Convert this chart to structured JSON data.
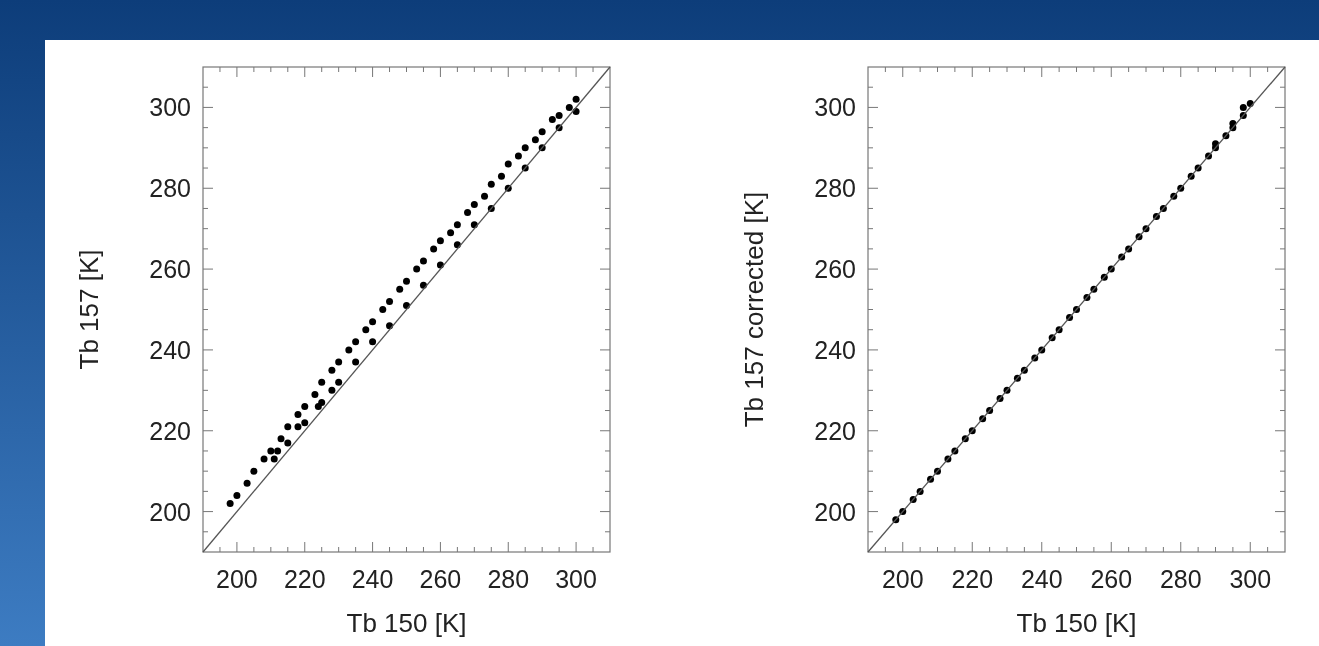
{
  "chart_data": [
    {
      "type": "scatter",
      "xlabel": "Tb 150 [K]",
      "ylabel": "Tb 157 [K]",
      "xlim": [
        190,
        310
      ],
      "ylim": [
        190,
        310
      ],
      "marker": "circle",
      "xticks": [
        {
          "value": 195,
          "label": null
        },
        200,
        {
          "value": 205,
          "label": null
        },
        {
          "value": 210,
          "label": null
        },
        {
          "value": 215,
          "label": null
        },
        220,
        {
          "value": 225,
          "label": null
        },
        {
          "value": 230,
          "label": null
        },
        {
          "value": 235,
          "label": null
        },
        240,
        {
          "value": 245,
          "label": null
        },
        {
          "value": 250,
          "label": null
        },
        {
          "value": 255,
          "label": null
        },
        260,
        {
          "value": 265,
          "label": null
        },
        {
          "value": 270,
          "label": null
        },
        {
          "value": 275,
          "label": null
        },
        280,
        {
          "value": 285,
          "label": null
        },
        {
          "value": 290,
          "label": null
        },
        {
          "value": 295,
          "label": null
        },
        300,
        {
          "value": 305,
          "label": null
        }
      ],
      "yticks": [
        {
          "value": 195,
          "label": null
        },
        200,
        {
          "value": 205,
          "label": null
        },
        {
          "value": 210,
          "label": null
        },
        {
          "value": 215,
          "label": null
        },
        220,
        {
          "value": 225,
          "label": null
        },
        {
          "value": 230,
          "label": null
        },
        {
          "value": 235,
          "label": null
        },
        240,
        {
          "value": 245,
          "label": null
        },
        {
          "value": 250,
          "label": null
        },
        {
          "value": 255,
          "label": null
        },
        260,
        {
          "value": 265,
          "label": null
        },
        {
          "value": 270,
          "label": null
        },
        {
          "value": 275,
          "label": null
        },
        280,
        {
          "value": 285,
          "label": null
        },
        {
          "value": 290,
          "label": null
        },
        {
          "value": 295,
          "label": null
        },
        300,
        {
          "value": 305,
          "label": null
        }
      ],
      "series": [
        {
          "color": "#000000",
          "x": [
            198,
            200,
            203,
            205,
            208,
            210,
            213,
            215,
            218,
            220,
            223,
            225,
            228,
            230,
            233,
            235,
            238,
            240,
            243,
            245,
            248,
            250,
            253,
            255,
            258,
            260,
            263,
            265,
            268,
            270,
            273,
            275,
            278,
            280,
            283,
            285,
            288,
            290,
            293,
            295,
            298,
            300,
            211,
            215,
            220,
            225,
            230,
            235,
            240,
            245,
            250,
            255,
            260,
            265,
            270,
            275,
            280,
            285,
            290,
            295,
            300,
            212,
            218,
            224,
            228
          ],
          "values": [
            202,
            204,
            207,
            210,
            213,
            215,
            218,
            221,
            224,
            226,
            229,
            232,
            235,
            237,
            240,
            242,
            245,
            247,
            250,
            252,
            255,
            257,
            260,
            262,
            265,
            267,
            269,
            271,
            274,
            276,
            278,
            281,
            283,
            286,
            288,
            290,
            292,
            294,
            297,
            298,
            300,
            302,
            213,
            217,
            222,
            227,
            232,
            237,
            242,
            246,
            251,
            256,
            261,
            266,
            271,
            275,
            280,
            285,
            290,
            295,
            299,
            215,
            221,
            226,
            230
          ]
        },
        {
          "type": "line",
          "marker": "none",
          "color": "#555555",
          "x": [
            190,
            310
          ],
          "values": [
            190,
            310
          ]
        }
      ]
    },
    {
      "type": "scatter",
      "xlabel": "Tb 150 [K]",
      "ylabel": "Tb 157 corrected [K]",
      "xlim": [
        190,
        310
      ],
      "ylim": [
        190,
        310
      ],
      "marker": "circle",
      "xticks": [
        {
          "value": 195,
          "label": null
        },
        200,
        {
          "value": 205,
          "label": null
        },
        {
          "value": 210,
          "label": null
        },
        {
          "value": 215,
          "label": null
        },
        220,
        {
          "value": 225,
          "label": null
        },
        {
          "value": 230,
          "label": null
        },
        {
          "value": 235,
          "label": null
        },
        240,
        {
          "value": 245,
          "label": null
        },
        {
          "value": 250,
          "label": null
        },
        {
          "value": 255,
          "label": null
        },
        260,
        {
          "value": 265,
          "label": null
        },
        {
          "value": 270,
          "label": null
        },
        {
          "value": 275,
          "label": null
        },
        280,
        {
          "value": 285,
          "label": null
        },
        {
          "value": 290,
          "label": null
        },
        {
          "value": 295,
          "label": null
        },
        300,
        {
          "value": 305,
          "label": null
        }
      ],
      "yticks": [
        {
          "value": 195,
          "label": null
        },
        200,
        {
          "value": 205,
          "label": null
        },
        {
          "value": 210,
          "label": null
        },
        {
          "value": 215,
          "label": null
        },
        220,
        {
          "value": 225,
          "label": null
        },
        {
          "value": 230,
          "label": null
        },
        {
          "value": 235,
          "label": null
        },
        240,
        {
          "value": 245,
          "label": null
        },
        {
          "value": 250,
          "label": null
        },
        {
          "value": 255,
          "label": null
        },
        260,
        {
          "value": 265,
          "label": null
        },
        {
          "value": 270,
          "label": null
        },
        {
          "value": 275,
          "label": null
        },
        280,
        {
          "value": 285,
          "label": null
        },
        {
          "value": 290,
          "label": null
        },
        {
          "value": 295,
          "label": null
        },
        300,
        {
          "value": 305,
          "label": null
        }
      ],
      "series": [
        {
          "color": "#000000",
          "x": [
            198,
            200,
            203,
            205,
            208,
            210,
            213,
            215,
            218,
            220,
            223,
            225,
            228,
            230,
            233,
            235,
            238,
            240,
            243,
            245,
            248,
            250,
            253,
            255,
            258,
            260,
            263,
            265,
            268,
            270,
            273,
            275,
            278,
            280,
            283,
            285,
            288,
            290,
            293,
            295,
            298,
            300,
            290,
            295,
            298
          ],
          "values": [
            198,
            200,
            203,
            205,
            208,
            210,
            213,
            215,
            218,
            220,
            223,
            225,
            228,
            230,
            233,
            235,
            238,
            240,
            243,
            245,
            248,
            250,
            253,
            255,
            258,
            260,
            263,
            265,
            268,
            270,
            273,
            275,
            278,
            280,
            283,
            285,
            288,
            290,
            293,
            295,
            298,
            301,
            291,
            296,
            300
          ]
        },
        {
          "type": "line",
          "marker": "none",
          "color": "#555555",
          "x": [
            190,
            310
          ],
          "values": [
            190,
            310
          ]
        }
      ]
    }
  ]
}
